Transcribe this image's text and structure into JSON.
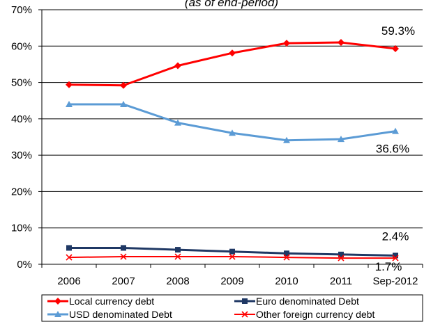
{
  "chart_data": {
    "type": "line",
    "title": "(as of end-period)",
    "xlabel": "",
    "ylabel": "",
    "categories": [
      "2006",
      "2007",
      "2008",
      "2009",
      "2010",
      "2011",
      "Sep-2012"
    ],
    "ylim": [
      0,
      70
    ],
    "yticks": [
      "0%",
      "10%",
      "20%",
      "30%",
      "40%",
      "50%",
      "60%",
      "70%"
    ],
    "grid": true,
    "legend_position": "bottom",
    "series": [
      {
        "name": "Local currency debt",
        "values": [
          49.4,
          49.2,
          54.6,
          58.1,
          60.8,
          61.0,
          59.3
        ],
        "color": "#ff0000",
        "marker": "diamond"
      },
      {
        "name": "USD denominated  Debt",
        "values": [
          44.0,
          44.0,
          38.9,
          36.1,
          34.1,
          34.4,
          36.6
        ],
        "color": "#5b9bd5",
        "marker": "triangle"
      },
      {
        "name": "Euro denominated  Debt",
        "values": [
          4.5,
          4.5,
          4.0,
          3.5,
          3.0,
          2.7,
          2.4
        ],
        "color": "#1f3864",
        "marker": "square"
      },
      {
        "name": "Other foreign currency debt",
        "values": [
          1.9,
          2.1,
          2.1,
          2.1,
          1.9,
          1.7,
          1.7
        ],
        "color": "#ff0000",
        "marker": "x"
      }
    ],
    "annotations": [
      {
        "text": "59.3%",
        "series": 0
      },
      {
        "text": "36.6%",
        "series": 1
      },
      {
        "text": "2.4%",
        "series": 2
      },
      {
        "text": "1.7%",
        "series": 3
      }
    ]
  }
}
